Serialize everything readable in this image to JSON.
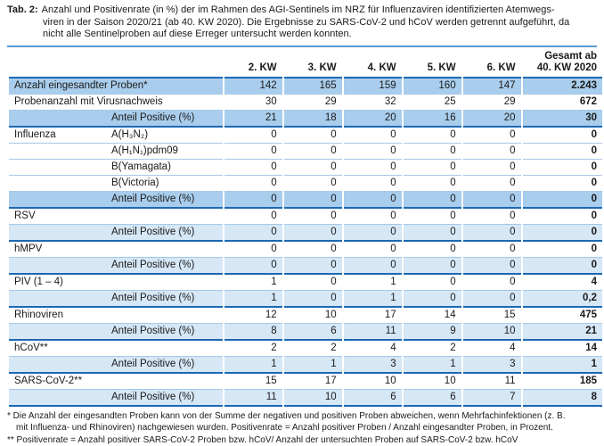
{
  "caption": {
    "label": "Tab. 2:",
    "lines": [
      "Anzahl und Positivenrate (in %) der im Rahmen des AGI-Sentinels im NRZ für Influenzaviren identifizierten Atemwegs-",
      "viren in der Saison 2020/21 (ab 40. KW 2020). Die Ergebnisse zu SARS-CoV-2 und hCoV werden getrennt aufgeführt, da",
      "nicht alle Sentinelproben auf diese Erreger untersucht werden konnten."
    ]
  },
  "table": {
    "col_headers": [
      "2. KW",
      "3. KW",
      "4. KW",
      "5. KW",
      "6. KW",
      "Gesamt ab\n40. KW 2020"
    ],
    "rows": [
      {
        "cat": "Anzahl eingesandter Proben*",
        "sub": "",
        "vals": [
          "142",
          "165",
          "159",
          "160",
          "147",
          "2.243"
        ],
        "bg": "medium",
        "divider": false
      },
      {
        "cat": "Probenanzahl mit Virusnachweis",
        "sub": "",
        "vals": [
          "30",
          "29",
          "32",
          "25",
          "29",
          "672"
        ],
        "bg": "white",
        "divider": false
      },
      {
        "cat": "",
        "sub": "Anteil Positive (%)",
        "vals": [
          "21",
          "18",
          "20",
          "16",
          "20",
          "30"
        ],
        "bg": "medium",
        "divider": true
      },
      {
        "cat": "Influenza",
        "sub": "A(H₃N₂)",
        "vals": [
          "0",
          "0",
          "0",
          "0",
          "0",
          "0"
        ],
        "bg": "white",
        "divider": false
      },
      {
        "cat": "",
        "sub": "A(H₁N₁)pdm09",
        "vals": [
          "0",
          "0",
          "0",
          "0",
          "0",
          "0"
        ],
        "bg": "white",
        "divider": false
      },
      {
        "cat": "",
        "sub": "B(Yamagata)",
        "vals": [
          "0",
          "0",
          "0",
          "0",
          "0",
          "0"
        ],
        "bg": "white",
        "divider": false
      },
      {
        "cat": "",
        "sub": "B(Victoria)",
        "vals": [
          "0",
          "0",
          "0",
          "0",
          "0",
          "0"
        ],
        "bg": "white",
        "divider": false
      },
      {
        "cat": "",
        "sub": "Anteil Positive (%)",
        "vals": [
          "0",
          "0",
          "0",
          "0",
          "0",
          "0"
        ],
        "bg": "medium",
        "divider": true
      },
      {
        "cat": "RSV",
        "sub": "",
        "vals": [
          "0",
          "0",
          "0",
          "0",
          "0",
          "0"
        ],
        "bg": "white",
        "divider": false
      },
      {
        "cat": "",
        "sub": "Anteil Positive (%)",
        "vals": [
          "0",
          "0",
          "0",
          "0",
          "0",
          "0"
        ],
        "bg": "light",
        "divider": true
      },
      {
        "cat": "hMPV",
        "sub": "",
        "vals": [
          "0",
          "0",
          "0",
          "0",
          "0",
          "0"
        ],
        "bg": "white",
        "divider": false
      },
      {
        "cat": "",
        "sub": "Anteil Positive (%)",
        "vals": [
          "0",
          "0",
          "0",
          "0",
          "0",
          "0"
        ],
        "bg": "light",
        "divider": true
      },
      {
        "cat": "PIV (1 – 4)",
        "sub": "",
        "vals": [
          "1",
          "0",
          "1",
          "0",
          "0",
          "4"
        ],
        "bg": "white",
        "divider": false
      },
      {
        "cat": "",
        "sub": "Anteil Positive (%)",
        "vals": [
          "1",
          "0",
          "1",
          "0",
          "0",
          "0,2"
        ],
        "bg": "light",
        "divider": true
      },
      {
        "cat": "Rhinoviren",
        "sub": "",
        "vals": [
          "12",
          "10",
          "17",
          "14",
          "15",
          "475"
        ],
        "bg": "white",
        "divider": false
      },
      {
        "cat": "",
        "sub": "Anteil Positive (%)",
        "vals": [
          "8",
          "6",
          "11",
          "9",
          "10",
          "21"
        ],
        "bg": "light",
        "divider": true
      },
      {
        "cat": "hCoV**",
        "sub": "",
        "vals": [
          "2",
          "2",
          "4",
          "2",
          "4",
          "14"
        ],
        "bg": "white",
        "divider": false
      },
      {
        "cat": "",
        "sub": "Anteil Positive (%)",
        "vals": [
          "1",
          "1",
          "3",
          "1",
          "3",
          "1"
        ],
        "bg": "light",
        "divider": true
      },
      {
        "cat": "SARS-CoV-2**",
        "sub": "",
        "vals": [
          "15",
          "17",
          "10",
          "10",
          "11",
          "185"
        ],
        "bg": "white",
        "divider": false
      },
      {
        "cat": "",
        "sub": "Anteil Positive (%)",
        "vals": [
          "11",
          "10",
          "6",
          "6",
          "7",
          "8"
        ],
        "bg": "light",
        "divider": true
      }
    ]
  },
  "footnotes": {
    "lines": [
      {
        "text": "* Die Anzahl der eingesandten Proben kann von der Summe der negativen und positiven Proben abweichen, wenn Mehrfachinfektionen (z. B.",
        "indent": false
      },
      {
        "text": "mit Influenza- und Rhinoviren) nachgewiesen wurden. Positivenrate = Anzahl positiver Proben / Anzahl eingesandter Proben, in Prozent.",
        "indent": true
      },
      {
        "text": "** Positivenrate = Anzahl positiver SARS-CoV-2 Proben bzw. hCoV/ Anzahl der untersuchten Proben auf SARS-CoV-2 bzw. hCoV",
        "indent": false
      }
    ]
  },
  "colors": {
    "row_medium_blue": "#a9cdec",
    "row_light_blue": "#d6e7f6",
    "section_divider": "#1c69b3",
    "row_separator": "#a6c8e8",
    "caption_rule": "#5d9bd0",
    "text": "#1a1a1a"
  }
}
